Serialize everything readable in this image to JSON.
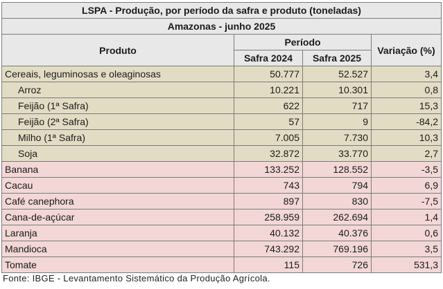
{
  "title": "LSPA - Produção, por período da safra e produto (toneladas)",
  "subtitle": "Amazonas - junho 2025",
  "headers": {
    "produto": "Produto",
    "periodo": "Período",
    "safra2024": "Safra 2024",
    "safra2025": "Safra 2025",
    "variacao": "Variação (%)"
  },
  "rows": [
    {
      "produto": "Cereais, leguminosas e oleaginosas",
      "s2024": "50.777",
      "s2025": "52.527",
      "var": "3,4"
    },
    {
      "produto": "Arroz",
      "s2024": "10.221",
      "s2025": "10.301",
      "var": "0,8"
    },
    {
      "produto": "Feijão (1ª Safra)",
      "s2024": "622",
      "s2025": "717",
      "var": "15,3"
    },
    {
      "produto": "Feijão (2ª Safra)",
      "s2024": "57",
      "s2025": "9",
      "var": "-84,2"
    },
    {
      "produto": "Milho (1ª Safra)",
      "s2024": "7.005",
      "s2025": "7.730",
      "var": "10,3"
    },
    {
      "produto": "Soja",
      "s2024": "32.872",
      "s2025": "33.770",
      "var": "2,7"
    },
    {
      "produto": "Banana",
      "s2024": "133.252",
      "s2025": "128.552",
      "var": "-3,5"
    },
    {
      "produto": "Cacau",
      "s2024": "743",
      "s2025": "794",
      "var": "6,9"
    },
    {
      "produto": "Café canephora",
      "s2024": "897",
      "s2025": "830",
      "var": "-7,5"
    },
    {
      "produto": "Cana-de-açúcar",
      "s2024": "258.959",
      "s2025": "262.694",
      "var": "1,4"
    },
    {
      "produto": "Laranja",
      "s2024": "40.132",
      "s2025": "40.376",
      "var": "0,6"
    },
    {
      "produto": "Mandioca",
      "s2024": "743.292",
      "s2025": "769.196",
      "var": "3,5"
    },
    {
      "produto": "Tomate",
      "s2024": "115",
      "s2025": "726",
      "var": "531,3"
    }
  ],
  "source": "Fonte: IBGE - Levantamento Sistemático da Produção Agrícola.",
  "colors": {
    "header_bg": "#e8e8e8",
    "grain_bg": "#e3dcc4",
    "other_bg": "#f3d7d7",
    "border": "#7a7a7a"
  }
}
